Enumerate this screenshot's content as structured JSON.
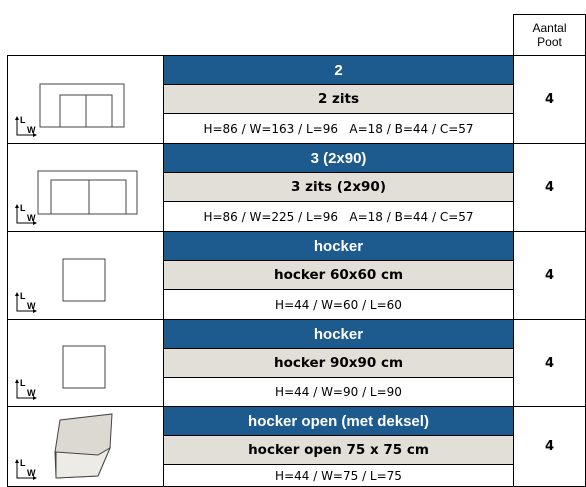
{
  "header": {
    "count_label": "Aantal Poot"
  },
  "axis": {
    "length": "L",
    "width": "W"
  },
  "rows": [
    {
      "name": "2",
      "title": "2 zits",
      "dims": "H=86 / W=163 / L=96   A=18 / B=44 / C=57",
      "count": 4
    },
    {
      "name": "3 (2x90)",
      "title": "3 zits (2x90)",
      "dims": "H=86 / W=225 / L=96   A=18 / B=44 / C=57",
      "count": 4
    },
    {
      "name": "hocker",
      "title": "hocker 60x60 cm",
      "dims": "H=44 / W=60 / L=60",
      "count": 4
    },
    {
      "name": "hocker",
      "title": "hocker 90x90 cm",
      "dims": "H=44 / W=90 / L=90",
      "count": 4
    },
    {
      "name": "hocker open (met deksel)",
      "title": "hocker open 75 x 75 cm",
      "dims": "H=44 / W=75 / L=75",
      "count": 4
    }
  ]
}
